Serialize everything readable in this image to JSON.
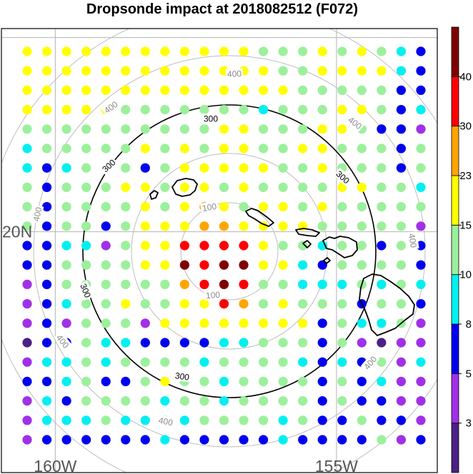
{
  "chart_data": {
    "type": "scatter",
    "title": "Dropsonde impact at 2018082512 (F072)",
    "map": {
      "lon_range": [
        -161.25,
        -153.9
      ],
      "lat_range": [
        15.6,
        24.4
      ],
      "gridlines": true,
      "lon_labels": [
        "160W",
        "155W"
      ],
      "lat_labels": [
        "20N"
      ],
      "islands": [
        "Kauai",
        "Oahu",
        "Molokai",
        "Lanai",
        "Maui",
        "Hawaii"
      ]
    },
    "range_rings": {
      "unit": "km",
      "labels": [
        "100",
        "100",
        "300",
        "300",
        "300",
        "300",
        "300",
        "400",
        "400",
        "400",
        "400",
        "400",
        "400",
        "400",
        "400"
      ],
      "bold_ring_value": "300"
    },
    "colorbar": {
      "labels": [
        "3",
        "5",
        "8",
        "10",
        "15",
        "23",
        "30",
        "40"
      ],
      "bins": [
        {
          "color": "#4b2185"
        },
        {
          "color": "#a030e8"
        },
        {
          "color": "#0000ee"
        },
        {
          "color": "#00f0f0"
        },
        {
          "color": "#9cf09c"
        },
        {
          "color": "#ffff00"
        },
        {
          "color": "#ffa500"
        },
        {
          "color": "#ff0000"
        },
        {
          "color": "#800000"
        }
      ],
      "placement": "right"
    },
    "grid": {
      "columns": 21,
      "rows": 21,
      "lon_step_deg": 0.35,
      "lat_step_deg": 0.42,
      "first_lon": -160.5,
      "first_lat": 23.9,
      "legend": "0 purple (<3), 1 violet (3-5), 2 blue (5-8), 3 cyan (8-10), 4 light green (10-15), 5 yellow (15-23), 6 orange (23-30), 7 red (30-40), 8 dark red (>40)",
      "cells": [
        "555555555555444545432",
        "555555555555544555532",
        "555555555555554444422",
        "555554444444344455423",
        "444444444455444554221",
        "344444545455445544424",
        "323444245555544544424",
        "424445545545444455443",
        "424444545654554544444",
        "424424555665555444441",
        "223314557777544344242",
        "224444558788553244442",
        "124444446787443334343",
        "123445445576454442442",
        "121444155555555243341",
        "022433222233444241011",
        "133434444344443232413",
        "223422454434444242311",
        "132444434434444242211",
        "133343333444434224221",
        "122222232222232222412"
      ]
    }
  }
}
